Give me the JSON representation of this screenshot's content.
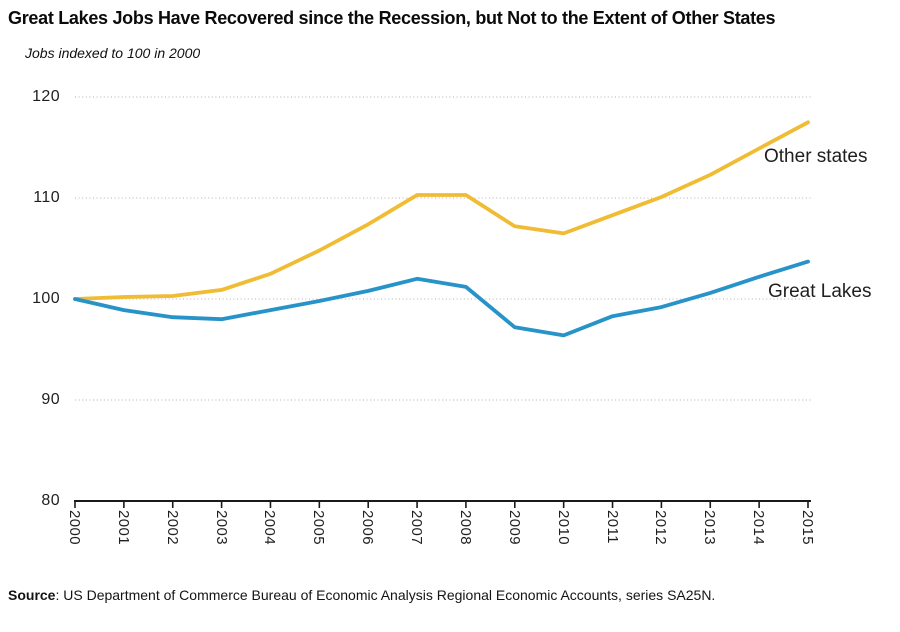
{
  "title": "Great Lakes Jobs Have Recovered since the Recession, but Not to the Extent of Other States",
  "subtitle": "Jobs indexed to 100 in 2000",
  "source": {
    "prefix": "Source",
    "text": ": US Department of Commerce Bureau of Economic Analysis Regional Economic Accounts, series SA25N."
  },
  "colors": {
    "other_states": "#EFBC33",
    "great_lakes": "#2793C8",
    "grid": "#cbcbcb",
    "axis": "#1a1a1a"
  },
  "chart_data": {
    "type": "line",
    "title": "Great Lakes Jobs Have Recovered since the Recession, but Not to the Extent of Other States",
    "ylabel": "Jobs indexed to 100 in 2000",
    "xlabel": "",
    "ylim": [
      80,
      120
    ],
    "yticks": [
      80,
      90,
      100,
      110,
      120
    ],
    "grid": "horizontal-dotted",
    "legend_position": "end-of-line-labels",
    "x": [
      2000,
      2001,
      2002,
      2003,
      2004,
      2005,
      2006,
      2007,
      2008,
      2009,
      2010,
      2011,
      2012,
      2013,
      2014,
      2015
    ],
    "series": [
      {
        "name": "Other states",
        "color": "#EFBC33",
        "values": [
          100,
          100.2,
          100.3,
          100.9,
          102.5,
          104.8,
          107.4,
          110.3,
          110.3,
          107.2,
          106.5,
          108.3,
          110.1,
          112.3,
          114.9,
          117.5
        ]
      },
      {
        "name": "Great Lakes",
        "color": "#2793C8",
        "values": [
          100,
          98.9,
          98.2,
          98.0,
          98.9,
          99.8,
          100.8,
          102.0,
          101.2,
          97.2,
          96.4,
          98.3,
          99.2,
          100.6,
          102.2,
          103.7
        ]
      }
    ]
  }
}
